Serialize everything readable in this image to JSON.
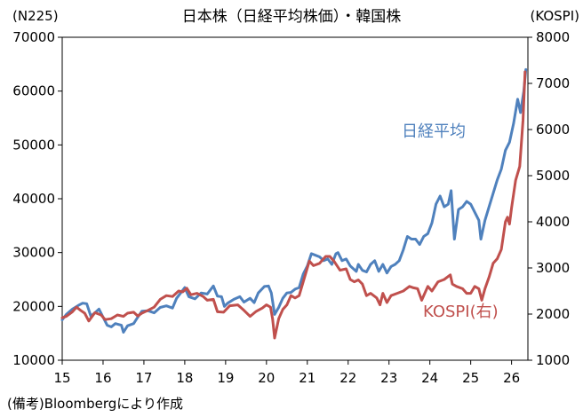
{
  "chart_data": {
    "type": "line",
    "title": "日本株（日経平均株価）・韓国株",
    "left_axis_unit": "(N225)",
    "right_axis_unit": "(KOSPI)",
    "source_note": "(備考)Bloombergにより作成",
    "x_ticks": [
      "15",
      "16",
      "17",
      "18",
      "19",
      "20",
      "21",
      "22",
      "23",
      "24",
      "25",
      "26"
    ],
    "x_range": [
      2015.0,
      2026.4
    ],
    "y_left": {
      "ticks": [
        "10000",
        "20000",
        "30000",
        "40000",
        "50000",
        "60000",
        "70000"
      ],
      "range": [
        10000,
        70000
      ]
    },
    "y_right": {
      "ticks": [
        "1000",
        "2000",
        "3000",
        "4000",
        "5000",
        "6000",
        "7000",
        "8000"
      ],
      "range": [
        1000,
        8000
      ]
    },
    "grid": false,
    "series": [
      {
        "name": "日経平均",
        "axis": "left",
        "color": "#4f81bd",
        "points": [
          [
            2015.0,
            17500
          ],
          [
            2015.1,
            18500
          ],
          [
            2015.25,
            19500
          ],
          [
            2015.4,
            20200
          ],
          [
            2015.5,
            20600
          ],
          [
            2015.6,
            20500
          ],
          [
            2015.7,
            18200
          ],
          [
            2015.8,
            18800
          ],
          [
            2015.9,
            19500
          ],
          [
            2016.0,
            18000
          ],
          [
            2016.1,
            16500
          ],
          [
            2016.2,
            16200
          ],
          [
            2016.3,
            16800
          ],
          [
            2016.45,
            16500
          ],
          [
            2016.5,
            15200
          ],
          [
            2016.6,
            16400
          ],
          [
            2016.75,
            16800
          ],
          [
            2016.85,
            18000
          ],
          [
            2016.95,
            19100
          ],
          [
            2017.1,
            19200
          ],
          [
            2017.25,
            18800
          ],
          [
            2017.4,
            19800
          ],
          [
            2017.55,
            20100
          ],
          [
            2017.7,
            19700
          ],
          [
            2017.8,
            21500
          ],
          [
            2017.9,
            22500
          ],
          [
            2018.0,
            23500
          ],
          [
            2018.1,
            21800
          ],
          [
            2018.25,
            21400
          ],
          [
            2018.4,
            22500
          ],
          [
            2018.55,
            22300
          ],
          [
            2018.7,
            23800
          ],
          [
            2018.8,
            21900
          ],
          [
            2018.9,
            21800
          ],
          [
            2018.97,
            20000
          ],
          [
            2019.05,
            20600
          ],
          [
            2019.2,
            21300
          ],
          [
            2019.35,
            21800
          ],
          [
            2019.45,
            20800
          ],
          [
            2019.6,
            21500
          ],
          [
            2019.7,
            20700
          ],
          [
            2019.8,
            22500
          ],
          [
            2019.95,
            23700
          ],
          [
            2020.05,
            23800
          ],
          [
            2020.12,
            22500
          ],
          [
            2020.2,
            18500
          ],
          [
            2020.3,
            19800
          ],
          [
            2020.4,
            21500
          ],
          [
            2020.5,
            22500
          ],
          [
            2020.6,
            22600
          ],
          [
            2020.7,
            23200
          ],
          [
            2020.8,
            23500
          ],
          [
            2020.9,
            26000
          ],
          [
            2021.0,
            27500
          ],
          [
            2021.1,
            29800
          ],
          [
            2021.2,
            29500
          ],
          [
            2021.3,
            29200
          ],
          [
            2021.4,
            28500
          ],
          [
            2021.5,
            28800
          ],
          [
            2021.6,
            27800
          ],
          [
            2021.7,
            29800
          ],
          [
            2021.75,
            30000
          ],
          [
            2021.85,
            28500
          ],
          [
            2021.95,
            28800
          ],
          [
            2022.05,
            27500
          ],
          [
            2022.2,
            26500
          ],
          [
            2022.25,
            27800
          ],
          [
            2022.35,
            26700
          ],
          [
            2022.45,
            26400
          ],
          [
            2022.55,
            27800
          ],
          [
            2022.65,
            28500
          ],
          [
            2022.75,
            26500
          ],
          [
            2022.85,
            27800
          ],
          [
            2022.95,
            26200
          ],
          [
            2023.05,
            27400
          ],
          [
            2023.15,
            27800
          ],
          [
            2023.25,
            28500
          ],
          [
            2023.35,
            30500
          ],
          [
            2023.45,
            33000
          ],
          [
            2023.55,
            32500
          ],
          [
            2023.65,
            32500
          ],
          [
            2023.75,
            31500
          ],
          [
            2023.85,
            33000
          ],
          [
            2023.95,
            33500
          ],
          [
            2024.05,
            35500
          ],
          [
            2024.15,
            39000
          ],
          [
            2024.25,
            40500
          ],
          [
            2024.35,
            38500
          ],
          [
            2024.45,
            39000
          ],
          [
            2024.52,
            41500
          ],
          [
            2024.6,
            32500
          ],
          [
            2024.7,
            38000
          ],
          [
            2024.8,
            38500
          ],
          [
            2024.9,
            39500
          ],
          [
            2025.0,
            39000
          ],
          [
            2025.1,
            37500
          ],
          [
            2025.2,
            36000
          ],
          [
            2025.25,
            32500
          ],
          [
            2025.35,
            36000
          ],
          [
            2025.45,
            38500
          ],
          [
            2025.55,
            41000
          ],
          [
            2025.65,
            43500
          ],
          [
            2025.75,
            45500
          ],
          [
            2025.85,
            49000
          ],
          [
            2025.95,
            50500
          ],
          [
            2026.05,
            54000
          ],
          [
            2026.15,
            58500
          ],
          [
            2026.22,
            56000
          ],
          [
            2026.3,
            60000
          ],
          [
            2026.35,
            64000
          ]
        ]
      },
      {
        "name": "KOSPI(右)",
        "axis": "right",
        "color": "#c0504d",
        "points": [
          [
            2015.0,
            1920
          ],
          [
            2015.1,
            1950
          ],
          [
            2015.25,
            2050
          ],
          [
            2015.35,
            2150
          ],
          [
            2015.45,
            2080
          ],
          [
            2015.55,
            2020
          ],
          [
            2015.65,
            1850
          ],
          [
            2015.8,
            2030
          ],
          [
            2015.95,
            1980
          ],
          [
            2016.05,
            1880
          ],
          [
            2016.2,
            1900
          ],
          [
            2016.35,
            1980
          ],
          [
            2016.5,
            1950
          ],
          [
            2016.6,
            2020
          ],
          [
            2016.75,
            2040
          ],
          [
            2016.85,
            1960
          ],
          [
            2016.95,
            2020
          ],
          [
            2017.1,
            2080
          ],
          [
            2017.25,
            2150
          ],
          [
            2017.4,
            2320
          ],
          [
            2017.55,
            2400
          ],
          [
            2017.7,
            2380
          ],
          [
            2017.85,
            2500
          ],
          [
            2017.95,
            2480
          ],
          [
            2018.05,
            2560
          ],
          [
            2018.15,
            2420
          ],
          [
            2018.3,
            2450
          ],
          [
            2018.45,
            2380
          ],
          [
            2018.55,
            2300
          ],
          [
            2018.7,
            2320
          ],
          [
            2018.8,
            2050
          ],
          [
            2018.95,
            2040
          ],
          [
            2019.1,
            2180
          ],
          [
            2019.3,
            2200
          ],
          [
            2019.45,
            2080
          ],
          [
            2019.6,
            1950
          ],
          [
            2019.75,
            2060
          ],
          [
            2019.9,
            2130
          ],
          [
            2020.0,
            2200
          ],
          [
            2020.1,
            2150
          ],
          [
            2020.15,
            1900
          ],
          [
            2020.2,
            1480
          ],
          [
            2020.3,
            1900
          ],
          [
            2020.4,
            2100
          ],
          [
            2020.5,
            2200
          ],
          [
            2020.6,
            2400
          ],
          [
            2020.7,
            2350
          ],
          [
            2020.8,
            2400
          ],
          [
            2020.95,
            2850
          ],
          [
            2021.05,
            3150
          ],
          [
            2021.15,
            3050
          ],
          [
            2021.3,
            3100
          ],
          [
            2021.45,
            3250
          ],
          [
            2021.55,
            3250
          ],
          [
            2021.65,
            3150
          ],
          [
            2021.8,
            2950
          ],
          [
            2021.95,
            2980
          ],
          [
            2022.05,
            2750
          ],
          [
            2022.15,
            2700
          ],
          [
            2022.25,
            2740
          ],
          [
            2022.35,
            2650
          ],
          [
            2022.45,
            2400
          ],
          [
            2022.55,
            2450
          ],
          [
            2022.7,
            2350
          ],
          [
            2022.78,
            2200
          ],
          [
            2022.85,
            2450
          ],
          [
            2022.95,
            2250
          ],
          [
            2023.05,
            2400
          ],
          [
            2023.2,
            2450
          ],
          [
            2023.35,
            2500
          ],
          [
            2023.5,
            2600
          ],
          [
            2023.6,
            2570
          ],
          [
            2023.7,
            2550
          ],
          [
            2023.8,
            2300
          ],
          [
            2023.95,
            2600
          ],
          [
            2024.05,
            2500
          ],
          [
            2024.2,
            2700
          ],
          [
            2024.35,
            2750
          ],
          [
            2024.5,
            2850
          ],
          [
            2024.55,
            2650
          ],
          [
            2024.65,
            2600
          ],
          [
            2024.8,
            2550
          ],
          [
            2024.9,
            2450
          ],
          [
            2025.0,
            2450
          ],
          [
            2025.1,
            2600
          ],
          [
            2025.2,
            2550
          ],
          [
            2025.27,
            2300
          ],
          [
            2025.35,
            2550
          ],
          [
            2025.45,
            2800
          ],
          [
            2025.55,
            3100
          ],
          [
            2025.65,
            3200
          ],
          [
            2025.75,
            3400
          ],
          [
            2025.85,
            4000
          ],
          [
            2025.9,
            4100
          ],
          [
            2025.95,
            3950
          ],
          [
            2026.0,
            4300
          ],
          [
            2026.1,
            4900
          ],
          [
            2026.2,
            5200
          ],
          [
            2026.28,
            6200
          ],
          [
            2026.33,
            7250
          ]
        ]
      }
    ]
  }
}
